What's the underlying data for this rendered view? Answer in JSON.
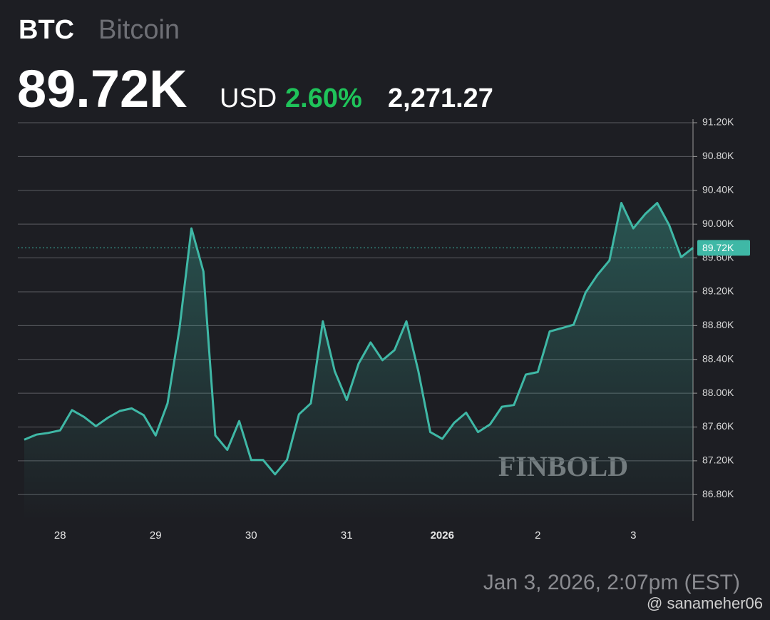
{
  "header": {
    "symbol": "BTC",
    "name": "Bitcoin",
    "price": "89.72K",
    "currency": "USD",
    "change_pct": "2.60%",
    "change": "2,271.27"
  },
  "chart_data": {
    "type": "line",
    "categories": [
      null,
      null,
      null,
      "28",
      null,
      null,
      null,
      null,
      null,
      null,
      null,
      "29",
      null,
      null,
      null,
      null,
      null,
      null,
      null,
      "30",
      null,
      null,
      null,
      null,
      null,
      null,
      null,
      "31",
      null,
      null,
      null,
      null,
      null,
      null,
      null,
      "2026",
      null,
      null,
      null,
      null,
      null,
      null,
      null,
      "2",
      null,
      null,
      null,
      null,
      null,
      null,
      null,
      "3",
      null,
      null,
      null,
      null,
      null
    ],
    "series": [
      {
        "name": "BTC",
        "color": "#3fb8a6",
        "values": [
          87450,
          87510,
          87530,
          87560,
          87800,
          87720,
          87610,
          87710,
          87790,
          87820,
          87740,
          87500,
          87880,
          88770,
          89950,
          89440,
          87500,
          87330,
          87670,
          87210,
          87210,
          87040,
          87210,
          87750,
          87880,
          88850,
          88260,
          87920,
          88350,
          88600,
          88390,
          88510,
          88850,
          88260,
          87540,
          87460,
          87650,
          87770,
          87540,
          87630,
          87840,
          87860,
          88220,
          88250,
          88730,
          88770,
          88810,
          89190,
          89400,
          89570,
          90250,
          89950,
          90120,
          90250,
          89990,
          89610,
          89720
        ]
      }
    ],
    "ylim": [
      86490,
      91200
    ],
    "yticks": [
      {
        "value": 86800,
        "label": "86.80K"
      },
      {
        "value": 87200,
        "label": "87.20K"
      },
      {
        "value": 87600,
        "label": "87.60K"
      },
      {
        "value": 88000,
        "label": "88.00K"
      },
      {
        "value": 88400,
        "label": "88.40K"
      },
      {
        "value": 88800,
        "label": "88.80K"
      },
      {
        "value": 89200,
        "label": "89.20K"
      },
      {
        "value": 89600,
        "label": "89.60K"
      },
      {
        "value": 90000,
        "label": "90.00K"
      },
      {
        "value": 90400,
        "label": "90.40K"
      },
      {
        "value": 90800,
        "label": "90.80K"
      },
      {
        "value": 91200,
        "label": "91.20K"
      }
    ],
    "grid": true,
    "price_marker": {
      "value": 89720,
      "label": "89.72K"
    },
    "watermark": "FINBOLD"
  },
  "footer": {
    "timestamp": "Jan 3, 2026, 2:07pm (EST)",
    "credit": "@ sanameher06"
  }
}
